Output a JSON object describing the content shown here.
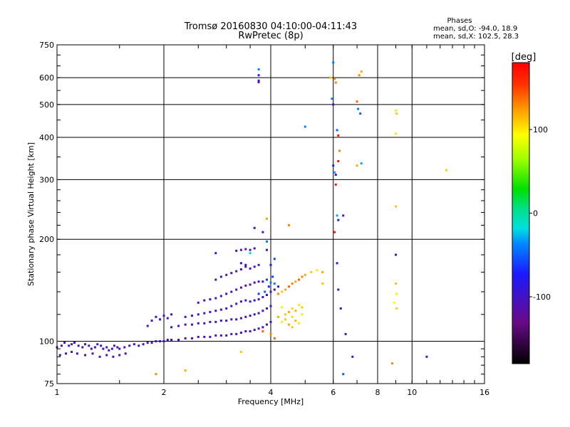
{
  "chart_data": {
    "type": "scatter",
    "title": "Tromsø 20160830 04:10:00-04:11:43",
    "subtitle": "RwPretec (8p)",
    "xlabel": "Frequency [MHz]",
    "ylabel": "Stationary phase Virtual Height [km]",
    "x_scale": "log2",
    "y_scale": "log",
    "xlim": [
      1,
      16
    ],
    "ylim": [
      75,
      750
    ],
    "x_ticks": [
      1,
      2,
      4,
      6,
      8,
      10,
      16
    ],
    "x_tick_labels": [
      "1",
      "2",
      "4",
      "6",
      "8",
      "10",
      "16"
    ],
    "y_ticks": [
      75,
      100,
      200,
      300,
      400,
      500,
      600,
      750
    ],
    "y_tick_labels": [
      "75",
      "100",
      "200",
      "300",
      "400",
      "500",
      "600",
      "750"
    ],
    "grid": true,
    "stats": {
      "heading": "Phases",
      "o_line": "mean, sd,O: -94.0, 18.9",
      "x_line": "mean, sd,X: 102.5, 28.3"
    },
    "colorbar": {
      "label": "[deg]",
      "range": [
        -180,
        180
      ],
      "ticks": [
        100,
        0,
        -100
      ],
      "tick_labels": [
        "100",
        "0",
        "-100"
      ]
    },
    "points": [
      [
        1.0,
        96,
        -110
      ],
      [
        1.03,
        97,
        -105
      ],
      [
        1.05,
        99,
        -100
      ],
      [
        1.08,
        97,
        -95
      ],
      [
        1.1,
        98,
        -110
      ],
      [
        1.12,
        99,
        -100
      ],
      [
        1.15,
        97,
        -90
      ],
      [
        1.18,
        96,
        -105
      ],
      [
        1.2,
        98,
        -110
      ],
      [
        1.23,
        97,
        -100
      ],
      [
        1.25,
        95,
        -95
      ],
      [
        1.28,
        96,
        -110
      ],
      [
        1.3,
        98,
        -100
      ],
      [
        1.33,
        97,
        -90
      ],
      [
        1.35,
        95,
        -105
      ],
      [
        1.38,
        96,
        -110
      ],
      [
        1.4,
        94,
        -100
      ],
      [
        1.43,
        95,
        -95
      ],
      [
        1.45,
        97,
        -110
      ],
      [
        1.48,
        96,
        -100
      ],
      [
        1.5,
        95,
        -105
      ],
      [
        1.55,
        96,
        -110
      ],
      [
        1.6,
        97,
        -100
      ],
      [
        1.65,
        98,
        -95
      ],
      [
        1.7,
        97,
        -100
      ],
      [
        1.75,
        98,
        -105
      ],
      [
        1.8,
        99,
        -100
      ],
      [
        1.02,
        91,
        -100
      ],
      [
        1.06,
        92,
        -110
      ],
      [
        1.1,
        93,
        -100
      ],
      [
        1.14,
        92,
        -95
      ],
      [
        1.2,
        91,
        -105
      ],
      [
        1.26,
        92,
        -110
      ],
      [
        1.32,
        90,
        -100
      ],
      [
        1.38,
        91,
        -95
      ],
      [
        1.44,
        90,
        -105
      ],
      [
        1.5,
        91,
        -100
      ],
      [
        1.56,
        92,
        -110
      ],
      [
        1.85,
        99,
        -100
      ],
      [
        1.9,
        100,
        -95
      ],
      [
        1.95,
        100,
        -105
      ],
      [
        2.0,
        100,
        -100
      ],
      [
        2.05,
        101,
        -110
      ],
      [
        2.1,
        101,
        -100
      ],
      [
        2.2,
        101,
        -95
      ],
      [
        2.3,
        102,
        -105
      ],
      [
        2.4,
        102,
        -100
      ],
      [
        2.5,
        103,
        -110
      ],
      [
        2.6,
        103,
        -100
      ],
      [
        2.7,
        103,
        -95
      ],
      [
        2.8,
        104,
        -105
      ],
      [
        2.9,
        104,
        -100
      ],
      [
        3.0,
        104,
        -110
      ],
      [
        3.1,
        105,
        -100
      ],
      [
        3.2,
        105,
        -95
      ],
      [
        3.3,
        106,
        -105
      ],
      [
        3.4,
        107,
        -100
      ],
      [
        3.5,
        107,
        -110
      ],
      [
        3.6,
        108,
        -100
      ],
      [
        3.7,
        109,
        -95
      ],
      [
        3.8,
        110,
        -100
      ],
      [
        3.9,
        112,
        -105
      ],
      [
        4.0,
        114,
        -100
      ],
      [
        1.8,
        111,
        -100
      ],
      [
        1.85,
        115,
        -110
      ],
      [
        1.9,
        118,
        -95
      ],
      [
        1.95,
        116,
        -100
      ],
      [
        2.0,
        119,
        -105
      ],
      [
        2.05,
        117,
        -100
      ],
      [
        2.1,
        120,
        -110
      ],
      [
        2.1,
        110,
        -100
      ],
      [
        2.2,
        111,
        -105
      ],
      [
        2.3,
        112,
        -95
      ],
      [
        2.4,
        112,
        -100
      ],
      [
        2.5,
        113,
        -110
      ],
      [
        2.6,
        113,
        -100
      ],
      [
        2.7,
        114,
        -105
      ],
      [
        2.8,
        114,
        -100
      ],
      [
        2.9,
        115,
        -95
      ],
      [
        3.0,
        115,
        -100
      ],
      [
        3.1,
        116,
        -110
      ],
      [
        3.2,
        116,
        -100
      ],
      [
        3.3,
        117,
        -105
      ],
      [
        3.4,
        118,
        -100
      ],
      [
        3.5,
        119,
        -95
      ],
      [
        3.6,
        120,
        -100
      ],
      [
        3.7,
        121,
        -110
      ],
      [
        3.8,
        123,
        -100
      ],
      [
        3.9,
        125,
        -100
      ],
      [
        4.0,
        127,
        -105
      ],
      [
        2.3,
        118,
        -100
      ],
      [
        2.4,
        119,
        -90
      ],
      [
        2.5,
        120,
        -100
      ],
      [
        2.6,
        121,
        -105
      ],
      [
        2.7,
        122,
        -95
      ],
      [
        2.8,
        123,
        -100
      ],
      [
        2.9,
        124,
        -110
      ],
      [
        3.0,
        125,
        -95
      ],
      [
        3.1,
        127,
        -100
      ],
      [
        3.2,
        129,
        -105
      ],
      [
        3.3,
        131,
        -95
      ],
      [
        3.4,
        132,
        -100
      ],
      [
        3.5,
        131,
        -70
      ],
      [
        3.6,
        132,
        -80
      ],
      [
        3.7,
        133,
        -100
      ],
      [
        3.8,
        135,
        -105
      ],
      [
        3.9,
        137,
        -100
      ],
      [
        4.0,
        140,
        -95
      ],
      [
        4.1,
        142,
        -100
      ],
      [
        4.2,
        145,
        -105
      ],
      [
        2.5,
        130,
        -100
      ],
      [
        2.6,
        132,
        -105
      ],
      [
        2.7,
        133,
        -95
      ],
      [
        2.8,
        134,
        -100
      ],
      [
        2.9,
        136,
        -105
      ],
      [
        3.0,
        138,
        -95
      ],
      [
        3.1,
        140,
        -100
      ],
      [
        3.2,
        142,
        -120
      ],
      [
        3.3,
        144,
        -125
      ],
      [
        3.4,
        146,
        -120
      ],
      [
        3.5,
        147,
        -130
      ],
      [
        3.6,
        149,
        -125
      ],
      [
        3.7,
        150,
        -100
      ],
      [
        2.8,
        152,
        -100
      ],
      [
        2.9,
        155,
        -105
      ],
      [
        3.0,
        157,
        -95
      ],
      [
        3.1,
        159,
        -100
      ],
      [
        3.2,
        161,
        -110
      ],
      [
        3.3,
        163,
        -100
      ],
      [
        3.4,
        166,
        -95
      ],
      [
        3.5,
        164,
        -100
      ],
      [
        3.6,
        166,
        -105
      ],
      [
        3.7,
        168,
        -100
      ],
      [
        3.3,
        170,
        -100
      ],
      [
        3.4,
        168,
        -110
      ],
      [
        2.8,
        182,
        -100
      ],
      [
        3.2,
        185,
        -95
      ],
      [
        3.3,
        186,
        -100
      ],
      [
        3.4,
        187,
        -105
      ],
      [
        3.5,
        186,
        -100
      ],
      [
        3.6,
        188,
        -95
      ],
      [
        3.9,
        186,
        -100
      ],
      [
        3.8,
        150,
        -80
      ],
      [
        3.9,
        152,
        -60
      ],
      [
        4.0,
        149,
        -40
      ],
      [
        3.85,
        140,
        -50
      ],
      [
        3.95,
        145,
        -70
      ],
      [
        4.05,
        155,
        -60
      ],
      [
        4.1,
        148,
        -40
      ],
      [
        3.7,
        138,
        -60
      ],
      [
        4.2,
        138,
        130
      ],
      [
        4.3,
        140,
        110
      ],
      [
        4.4,
        142,
        120
      ],
      [
        4.5,
        145,
        140
      ],
      [
        4.6,
        148,
        130
      ],
      [
        4.7,
        150,
        120
      ],
      [
        4.8,
        152,
        140
      ],
      [
        4.9,
        155,
        130
      ],
      [
        5.0,
        157,
        120
      ],
      [
        5.2,
        160,
        110
      ],
      [
        5.4,
        162,
        100
      ],
      [
        5.6,
        160,
        120
      ],
      [
        4.3,
        114,
        100
      ],
      [
        4.4,
        116,
        110
      ],
      [
        4.5,
        112,
        120
      ],
      [
        4.6,
        118,
        105
      ],
      [
        4.7,
        115,
        115
      ],
      [
        4.8,
        113,
        100
      ],
      [
        4.4,
        120,
        110
      ],
      [
        4.5,
        122,
        120
      ],
      [
        4.6,
        125,
        105
      ],
      [
        4.7,
        123,
        115
      ],
      [
        4.8,
        128,
        100
      ],
      [
        4.9,
        126,
        110
      ],
      [
        4.3,
        126,
        100
      ],
      [
        4.2,
        118,
        120
      ],
      [
        4.9,
        120,
        100
      ],
      [
        4.6,
        110,
        110
      ],
      [
        3.8,
        107,
        140
      ],
      [
        4.0,
        105,
        130
      ],
      [
        4.1,
        102,
        140
      ],
      [
        3.3,
        93,
        110
      ],
      [
        2.3,
        82,
        120
      ],
      [
        1.9,
        80,
        130
      ],
      [
        3.5,
        182,
        -20
      ],
      [
        3.9,
        197,
        -40
      ],
      [
        3.6,
        216,
        -110
      ],
      [
        3.8,
        210,
        -100
      ],
      [
        3.9,
        230,
        120
      ],
      [
        4.5,
        220,
        130
      ],
      [
        4.1,
        175,
        -60
      ],
      [
        4.0,
        168,
        -80
      ],
      [
        3.7,
        582,
        -110
      ],
      [
        3.7,
        588,
        -100
      ],
      [
        3.7,
        635,
        -40
      ],
      [
        3.7,
        610,
        -70
      ],
      [
        5.0,
        430,
        -40
      ],
      [
        5.9,
        600,
        110
      ],
      [
        5.95,
        520,
        -40
      ],
      [
        6.0,
        500,
        -100
      ],
      [
        6.05,
        595,
        130
      ],
      [
        6.1,
        580,
        130
      ],
      [
        6.15,
        420,
        -50
      ],
      [
        6.2,
        405,
        170
      ],
      [
        6.25,
        365,
        130
      ],
      [
        6.2,
        340,
        170
      ],
      [
        6.1,
        290,
        170
      ],
      [
        6.05,
        315,
        -30
      ],
      [
        6.0,
        330,
        -70
      ],
      [
        6.1,
        310,
        -100
      ],
      [
        6.15,
        235,
        -30
      ],
      [
        6.2,
        228,
        -80
      ],
      [
        6.4,
        235,
        -100
      ],
      [
        6.05,
        210,
        170
      ],
      [
        6.15,
        170,
        -100
      ],
      [
        6.2,
        142,
        -100
      ],
      [
        6.3,
        125,
        -100
      ],
      [
        6.5,
        105,
        -100
      ],
      [
        5.6,
        148,
        110
      ],
      [
        6.0,
        665,
        -40
      ],
      [
        7.0,
        510,
        140
      ],
      [
        7.05,
        485,
        -40
      ],
      [
        7.1,
        610,
        130
      ],
      [
        7.2,
        625,
        120
      ],
      [
        7.15,
        470,
        -50
      ],
      [
        7.0,
        330,
        120
      ],
      [
        7.2,
        335,
        -30
      ],
      [
        6.4,
        80,
        -50
      ],
      [
        6.8,
        90,
        -100
      ],
      [
        8.8,
        86,
        130
      ],
      [
        9.0,
        480,
        100
      ],
      [
        9.05,
        470,
        110
      ],
      [
        9.0,
        410,
        100
      ],
      [
        9.0,
        250,
        110
      ],
      [
        9.0,
        180,
        -100
      ],
      [
        9.0,
        148,
        110
      ],
      [
        9.05,
        138,
        100
      ],
      [
        8.9,
        130,
        90
      ],
      [
        9.05,
        125,
        110
      ],
      [
        11.0,
        90,
        -100
      ],
      [
        12.5,
        320,
        110
      ]
    ]
  }
}
